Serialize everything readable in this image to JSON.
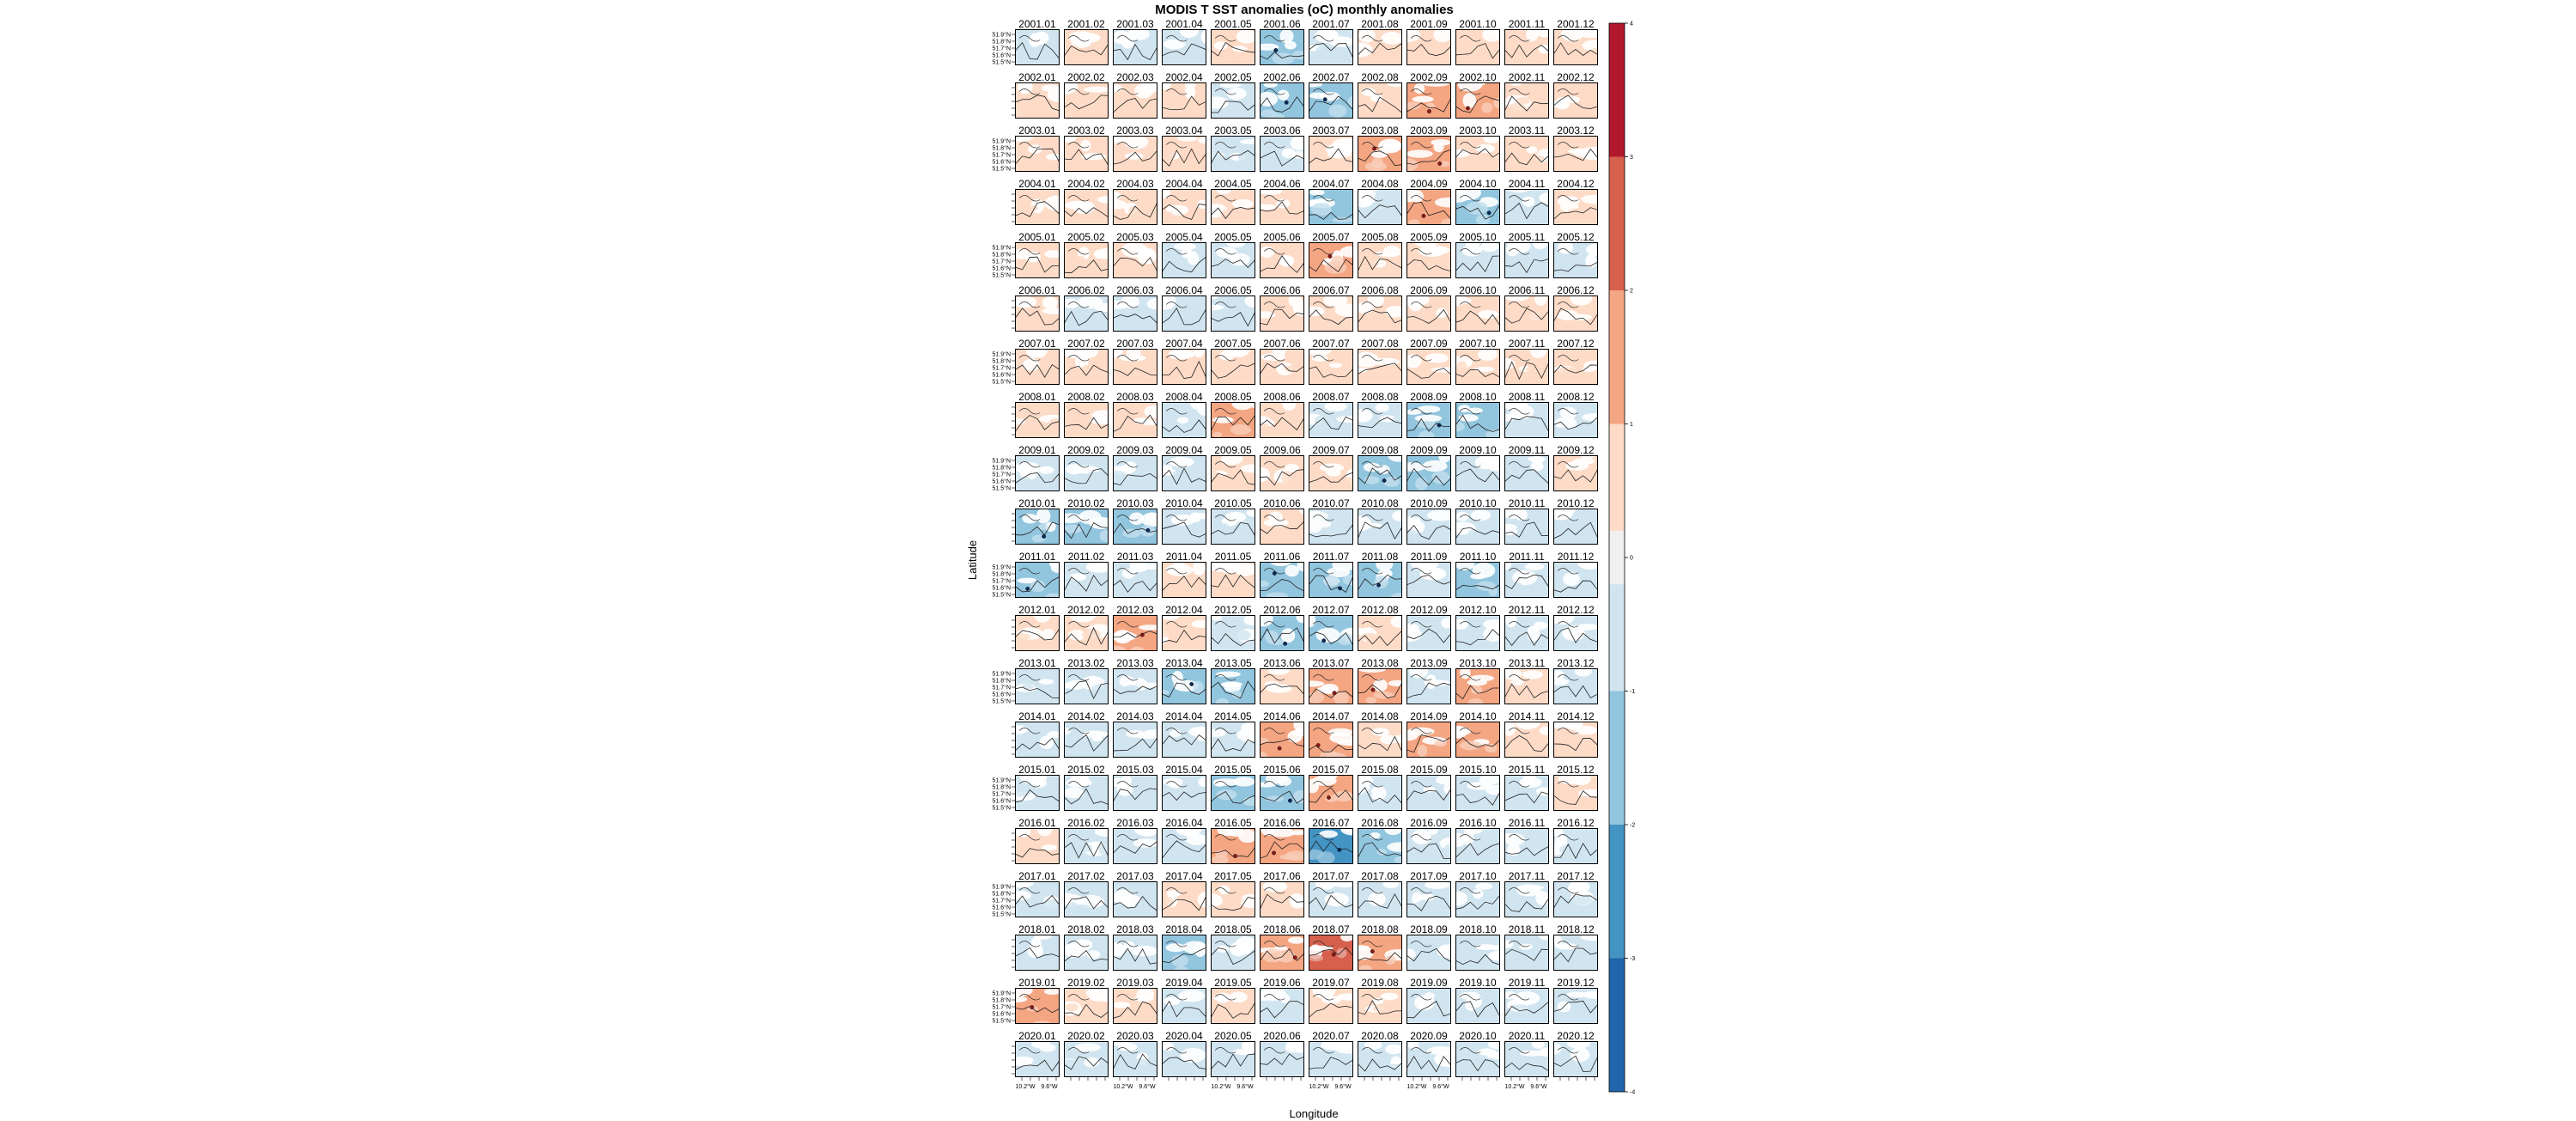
{
  "chart_data": {
    "type": "heatmap",
    "title": "MODIS T SST anomalies (oC) monthly anomalies",
    "xlabel": "Longitude",
    "ylabel": "Latitude",
    "years": [
      2001,
      2002,
      2003,
      2004,
      2005,
      2006,
      2007,
      2008,
      2009,
      2010,
      2011,
      2012,
      2013,
      2014,
      2015,
      2016,
      2017,
      2018,
      2019,
      2020
    ],
    "months": [
      "01",
      "02",
      "03",
      "04",
      "05",
      "06",
      "07",
      "08",
      "09",
      "10",
      "11",
      "12"
    ],
    "x_tick_labels": [
      "10.2°W",
      "9.6°W"
    ],
    "y_tick_labels": [
      "51.9°N",
      "51.8°N",
      "51.7°N",
      "51.6°N",
      "51.5°N"
    ],
    "colorbar": {
      "ticks": [
        4,
        3,
        2,
        1,
        0,
        -1,
        -2,
        -3,
        -4
      ],
      "range": [
        -4,
        4
      ],
      "colors": [
        "#b2182b",
        "#d6604d",
        "#f4a582",
        "#fddbc7",
        "#f0f0f0",
        "#d1e5f0",
        "#92c5de",
        "#4393c3",
        "#2166ac"
      ]
    },
    "panel_anomalies": [
      [
        -0.8,
        0.5,
        -0.6,
        -0.4,
        0.3,
        -1.1,
        -0.9,
        0.4,
        0.5,
        0.4,
        0.5,
        0.6
      ],
      [
        0.6,
        0.6,
        0.7,
        0.4,
        -0.4,
        -1.2,
        -1.3,
        0.7,
        1.2,
        1.1,
        0.9,
        0.6
      ],
      [
        0.3,
        0.5,
        0.5,
        0.4,
        -0.4,
        -0.3,
        0.2,
        1.4,
        1.3,
        0.7,
        0.6,
        0.5
      ],
      [
        0.3,
        0.4,
        0.5,
        0.5,
        0.9,
        0.8,
        -1.0,
        -0.8,
        1.2,
        -1.4,
        -0.9,
        0.7
      ],
      [
        0.3,
        0.5,
        0.5,
        -0.4,
        -0.4,
        0.8,
        1.2,
        0.9,
        0.9,
        -0.4,
        -0.4,
        -0.3
      ],
      [
        0.5,
        -0.4,
        -0.7,
        -0.6,
        -0.7,
        0.8,
        0.6,
        0.4,
        0.3,
        0.9,
        0.8,
        0.6
      ],
      [
        0.5,
        0.5,
        0.6,
        0.5,
        0.5,
        0.6,
        0.4,
        0.6,
        0.9,
        0.9,
        0.9,
        0.6
      ],
      [
        0.4,
        0.6,
        0.5,
        -0.7,
        1.0,
        0.5,
        -0.8,
        -0.6,
        -1.5,
        -1.0,
        -0.4,
        -0.5
      ],
      [
        -0.4,
        -0.9,
        -0.6,
        -0.5,
        0.6,
        0.6,
        0.4,
        -1.3,
        -1.0,
        -0.4,
        -0.5,
        0.5
      ],
      [
        -1.2,
        -1.0,
        -1.1,
        -0.8,
        -0.6,
        0.7,
        -0.6,
        -0.9,
        -0.6,
        -0.4,
        -0.6,
        -0.9
      ],
      [
        -1.1,
        -0.5,
        -0.9,
        0.4,
        0.5,
        -1.2,
        -1.3,
        -1.3,
        -0.7,
        -1.0,
        -0.9,
        -0.5
      ],
      [
        0.4,
        0.5,
        1.4,
        0.6,
        -0.8,
        -1.2,
        -1.1,
        0.5,
        -0.7,
        -0.9,
        -0.5,
        -0.4
      ],
      [
        -0.3,
        -0.4,
        -0.6,
        -1.1,
        -1.0,
        0.7,
        1.6,
        1.4,
        -0.7,
        1.0,
        0.5,
        -0.4
      ],
      [
        -0.5,
        -0.5,
        -0.6,
        -0.9,
        -0.8,
        1.8,
        1.7,
        0.6,
        1.0,
        1.0,
        0.9,
        0.6
      ],
      [
        -0.4,
        -0.4,
        -0.5,
        -0.6,
        -1.0,
        -1.2,
        1.2,
        -0.8,
        -0.9,
        -0.6,
        -0.4,
        0.5
      ],
      [
        0.5,
        -0.3,
        -0.3,
        -0.4,
        1.2,
        1.1,
        -2.1,
        -1.0,
        -0.5,
        -0.4,
        -0.4,
        -0.5
      ],
      [
        -0.3,
        -0.4,
        -0.3,
        0.5,
        0.8,
        0.9,
        -0.6,
        -0.5,
        -0.8,
        -0.6,
        -0.5,
        -0.4
      ],
      [
        -0.5,
        -0.7,
        -0.6,
        -1.0,
        -0.9,
        1.8,
        2.3,
        1.1,
        -0.7,
        -0.5,
        -0.4,
        -0.5
      ],
      [
        1.1,
        0.6,
        0.9,
        -0.4,
        0.5,
        -0.8,
        0.6,
        0.3,
        -0.8,
        -0.4,
        -0.5,
        -0.4
      ],
      [
        -0.4,
        -0.3,
        -0.4,
        -0.5,
        -0.6,
        -0.5,
        -0.3,
        -0.3,
        -0.6,
        -0.6,
        -0.5,
        -0.5
      ]
    ]
  }
}
